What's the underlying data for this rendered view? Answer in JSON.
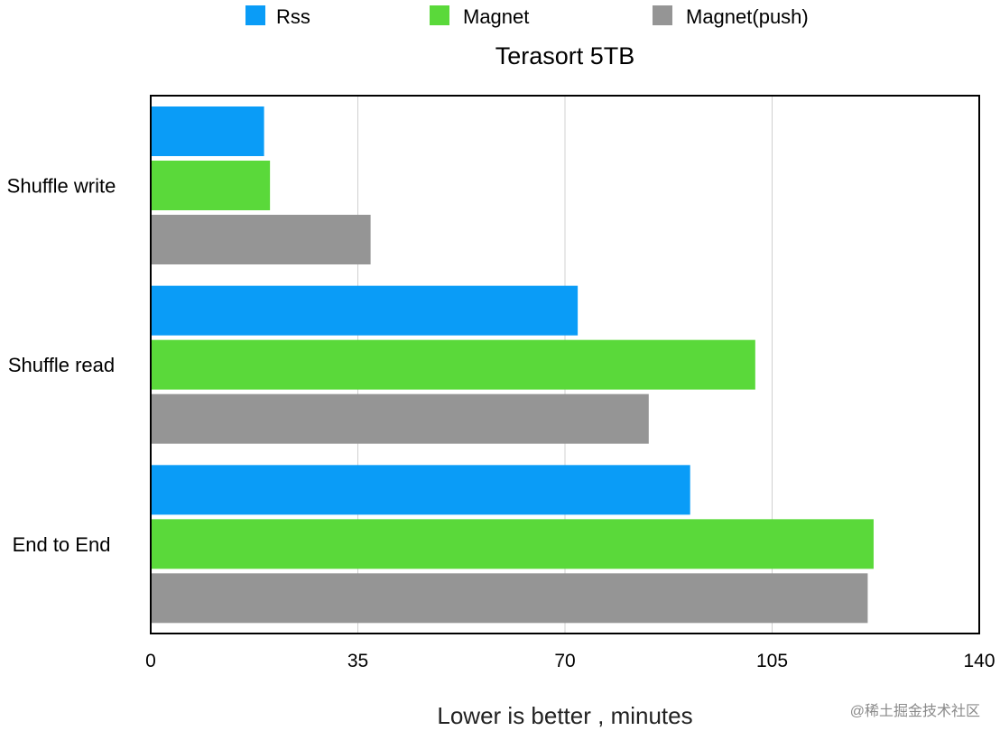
{
  "chart_data": {
    "type": "bar",
    "orientation": "horizontal",
    "title": "Terasort 5TB",
    "xlabel": "Lower is better , minutes",
    "ylabel": "",
    "categories": [
      "Shuffle write",
      "Shuffle read",
      "End to End"
    ],
    "series": [
      {
        "name": "Rss",
        "color": "#0a9cf7",
        "values": [
          19,
          72,
          91
        ]
      },
      {
        "name": "Magnet",
        "color": "#5ad93a",
        "values": [
          20,
          102,
          122
        ]
      },
      {
        "name": "Magnet(push)",
        "color": "#959595",
        "values": [
          37,
          84,
          121
        ]
      }
    ],
    "xlim": [
      0,
      140
    ],
    "xticks": [
      "0",
      "35",
      "70",
      "105",
      "140"
    ],
    "grid": true,
    "legend_position": "top"
  },
  "watermark": "@稀土掘金技术社区"
}
